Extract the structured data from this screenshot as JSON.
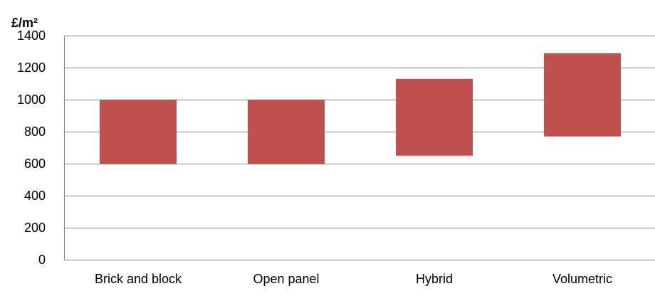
{
  "chart_data": {
    "type": "bar",
    "variant": "floating-range",
    "ylabel": "£/m²",
    "categories": [
      "Brick and block",
      "Open panel",
      "Hybrid",
      "Volumetric"
    ],
    "series": [
      {
        "low": [
          600,
          600,
          650,
          770
        ],
        "high": [
          1000,
          1000,
          1130,
          1290
        ],
        "color": "#c0504d"
      }
    ],
    "ylim": [
      0,
      1400
    ],
    "yticks": [
      0,
      200,
      400,
      600,
      800,
      1000,
      1200,
      1400
    ],
    "grid": true,
    "legend": "none"
  }
}
